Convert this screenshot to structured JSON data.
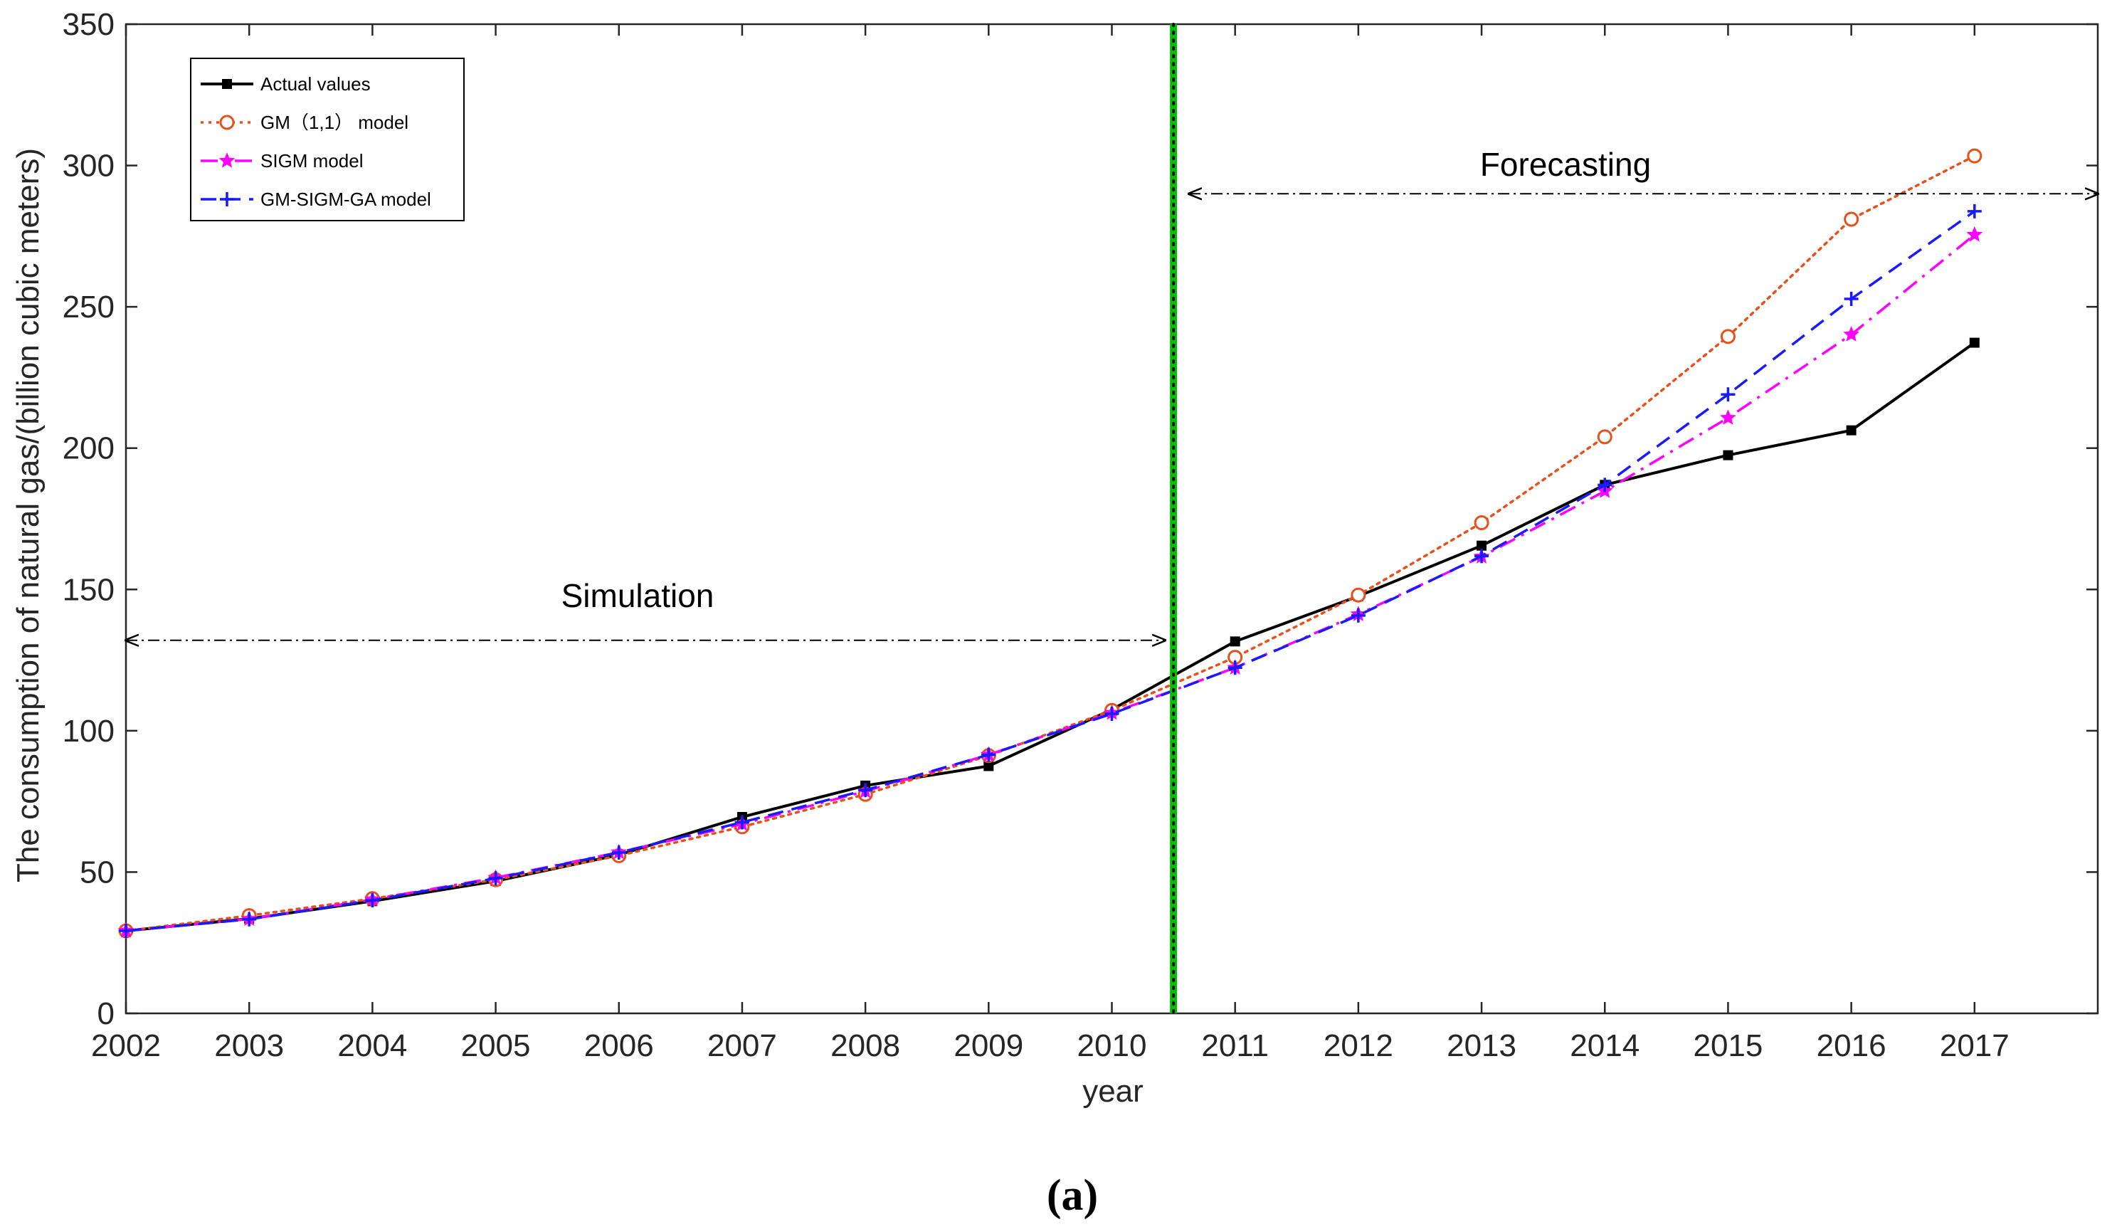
{
  "chart_data": {
    "type": "line",
    "title": "",
    "xlabel": "year",
    "ylabel": "The consumption of natural gas/(billion cubic meters)",
    "caption": "(a)",
    "x_ticks": [
      "2002",
      "2003",
      "2004",
      "2005",
      "2006",
      "2007",
      "2008",
      "2009",
      "2010",
      "2011",
      "2012",
      "2013",
      "2014",
      "2015",
      "2016",
      "2017"
    ],
    "y_ticks": [
      "0",
      "50",
      "100",
      "150",
      "200",
      "250",
      "300",
      "350"
    ],
    "xlim": [
      2002,
      2018
    ],
    "ylim": [
      0,
      350
    ],
    "grid": false,
    "legend_position": "top-left",
    "divider": {
      "x": 2010.5,
      "color": "#00c000",
      "dot_color": "#000000"
    },
    "annotations": {
      "simulation": {
        "label": "Simulation",
        "from": 2002,
        "to": 2010.5,
        "y": 132
      },
      "forecasting": {
        "label": "Forecasting",
        "from": 2010.5,
        "to": 2018,
        "y": 290
      }
    },
    "series": [
      {
        "name": "Actual values",
        "color": "#000000",
        "style": "solid",
        "marker": "square",
        "x": [
          2002,
          2003,
          2004,
          2005,
          2006,
          2007,
          2008,
          2009,
          2010,
          2011,
          2012,
          2013,
          2014,
          2015,
          2016,
          2017
        ],
        "values": [
          29.2,
          33.5,
          39.7,
          46.8,
          56.1,
          69.5,
          80.6,
          87.5,
          107.5,
          131.6,
          147.6,
          165.5,
          187,
          197.5,
          206.3,
          237.3
        ]
      },
      {
        "name": "GM（1,1） model",
        "color": "#e8501a",
        "style": "dotted",
        "marker": "circle",
        "x": [
          2002,
          2003,
          2004,
          2005,
          2006,
          2007,
          2008,
          2009,
          2010,
          2011,
          2012,
          2013,
          2014,
          2015,
          2016,
          2017
        ],
        "values": [
          29.2,
          34.6,
          40.6,
          47.3,
          55.8,
          66,
          77.5,
          91.2,
          107.2,
          126,
          148,
          173.6,
          204,
          239.5,
          281,
          303.4
        ]
      },
      {
        "name": "SIGM model",
        "color": "#ff00ff",
        "style": "dashdot",
        "marker": "star",
        "x": [
          2002,
          2003,
          2004,
          2005,
          2006,
          2007,
          2008,
          2009,
          2010,
          2011,
          2012,
          2013,
          2014,
          2015,
          2016,
          2017
        ],
        "values": [
          29.2,
          33.4,
          40.3,
          48,
          57,
          67,
          78.6,
          91.5,
          106.3,
          122.3,
          141.2,
          161.6,
          184.8,
          210.7,
          240.2,
          275.5
        ]
      },
      {
        "name": "GM-SIGM-GA model",
        "color": "#1a1aff",
        "style": "dashed",
        "marker": "plus",
        "x": [
          2002,
          2003,
          2004,
          2005,
          2006,
          2007,
          2008,
          2009,
          2010,
          2011,
          2012,
          2013,
          2014,
          2015,
          2016,
          2017
        ],
        "values": [
          29.2,
          33.3,
          40,
          47.8,
          56.9,
          67.6,
          79,
          91.5,
          106,
          122.3,
          140.8,
          161.8,
          187,
          219,
          252.8,
          283.8
        ]
      }
    ]
  }
}
